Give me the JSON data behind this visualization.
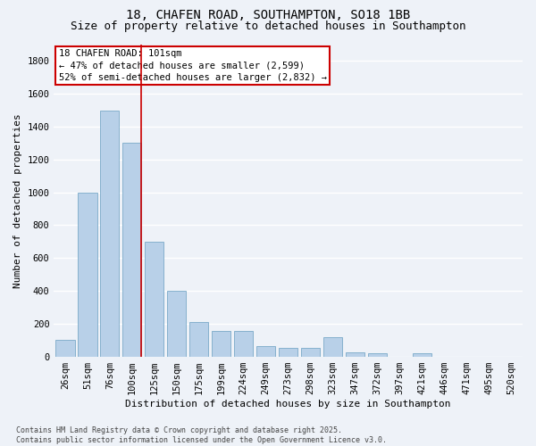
{
  "title": "18, CHAFEN ROAD, SOUTHAMPTON, SO18 1BB",
  "subtitle": "Size of property relative to detached houses in Southampton",
  "xlabel": "Distribution of detached houses by size in Southampton",
  "ylabel": "Number of detached properties",
  "categories": [
    "26sqm",
    "51sqm",
    "76sqm",
    "100sqm",
    "125sqm",
    "150sqm",
    "175sqm",
    "199sqm",
    "224sqm",
    "249sqm",
    "273sqm",
    "298sqm",
    "323sqm",
    "347sqm",
    "372sqm",
    "397sqm",
    "421sqm",
    "446sqm",
    "471sqm",
    "495sqm",
    "520sqm"
  ],
  "values": [
    100,
    1000,
    1500,
    1300,
    700,
    400,
    210,
    155,
    155,
    65,
    50,
    50,
    120,
    25,
    20,
    0,
    20,
    0,
    0,
    0,
    0
  ],
  "bar_color": "#b8d0e8",
  "bar_edge_color": "#7aaac8",
  "annotation_line_color": "#cc0000",
  "annotation_line_index": 3,
  "annotation_box_text": "18 CHAFEN ROAD: 101sqm\n← 47% of detached houses are smaller (2,599)\n52% of semi-detached houses are larger (2,832) →",
  "annotation_box_color": "#cc0000",
  "bg_color": "#eef2f8",
  "grid_color": "#ffffff",
  "footnote": "Contains HM Land Registry data © Crown copyright and database right 2025.\nContains public sector information licensed under the Open Government Licence v3.0.",
  "ylim": [
    0,
    1900
  ],
  "yticks": [
    0,
    200,
    400,
    600,
    800,
    1000,
    1200,
    1400,
    1600,
    1800
  ],
  "title_fontsize": 10,
  "subtitle_fontsize": 9,
  "xlabel_fontsize": 8,
  "ylabel_fontsize": 8,
  "tick_fontsize": 7.5,
  "annotation_fontsize": 7.5,
  "footnote_fontsize": 6
}
